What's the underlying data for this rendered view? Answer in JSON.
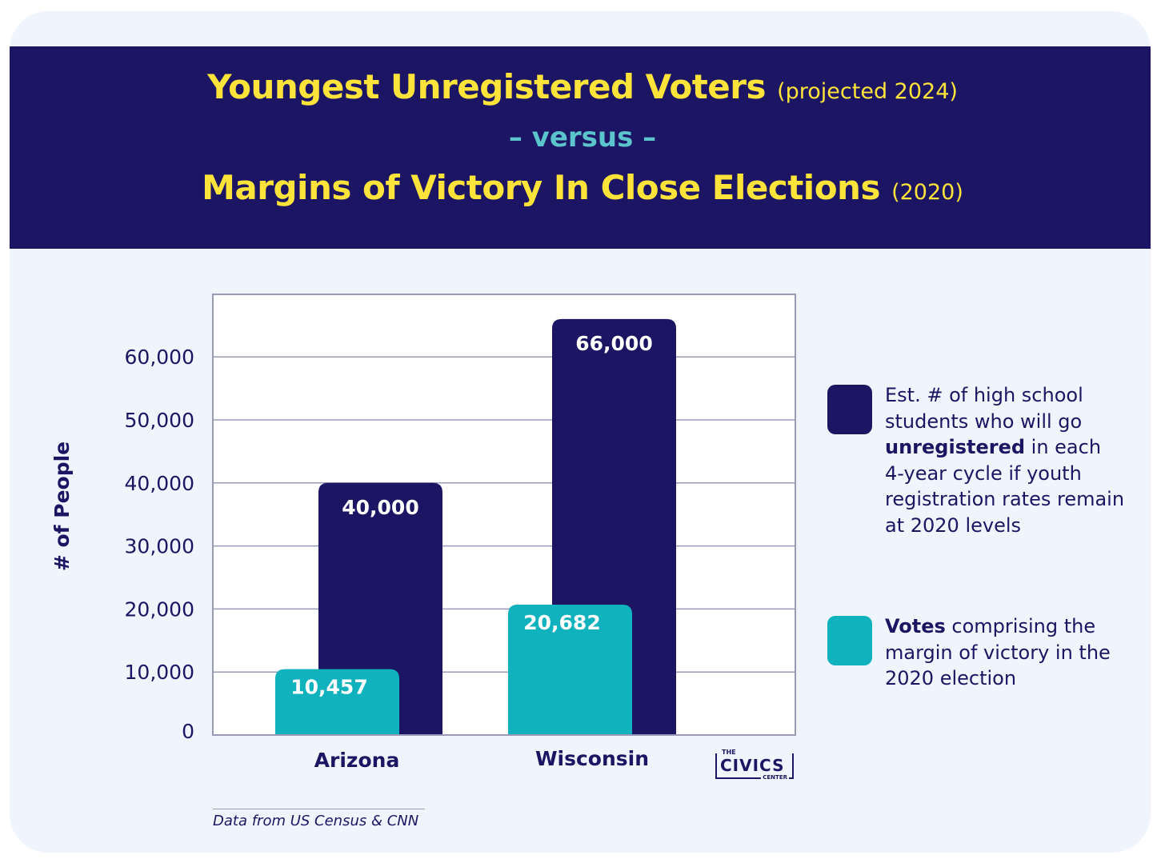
{
  "header": {
    "title_main": "Youngest Unregistered Voters",
    "title_main_sub": "(projected 2024)",
    "versus": "– versus –",
    "title_second": "Margins of Victory In Close Elections",
    "title_second_sub": "(2020)"
  },
  "legend": {
    "item1": {
      "text_before": "Est. # of high school students who will go ",
      "text_bold": "unregistered",
      "text_after": " in each 4-year cycle if youth registration rates remain at 2020 levels"
    },
    "item2": {
      "text_bold": "Votes",
      "text_after": " comprising the margin of victory in the 2020 election"
    }
  },
  "source": "Data from US Census & CNN",
  "logo": {
    "the": "THE",
    "civics": "CIVICS",
    "center": "CENTER"
  },
  "colors": {
    "navy": "#1c1563",
    "teal": "#10b2bd",
    "yellow": "#fde33a",
    "background": "#eff4fd"
  },
  "chart_data": {
    "type": "bar",
    "categories": [
      "Arizona",
      "Wisconsin"
    ],
    "series": [
      {
        "values": [
          10457,
          20682
        ],
        "labels": [
          "10,457",
          "20,682"
        ],
        "color": "#10b2bd"
      },
      {
        "values": [
          40000,
          66000
        ],
        "labels": [
          "40,000",
          "66,000"
        ],
        "color": "#1c1563"
      }
    ],
    "ylabel": "# of People",
    "ylim": [
      0,
      70000
    ],
    "yticks": [
      0,
      10000,
      20000,
      30000,
      40000,
      50000,
      60000
    ],
    "ytick_labels": [
      "0",
      "10,000",
      "20,000",
      "30,000",
      "40,000",
      "50,000",
      "60,000"
    ],
    "grid": true,
    "legend_position": "right"
  }
}
